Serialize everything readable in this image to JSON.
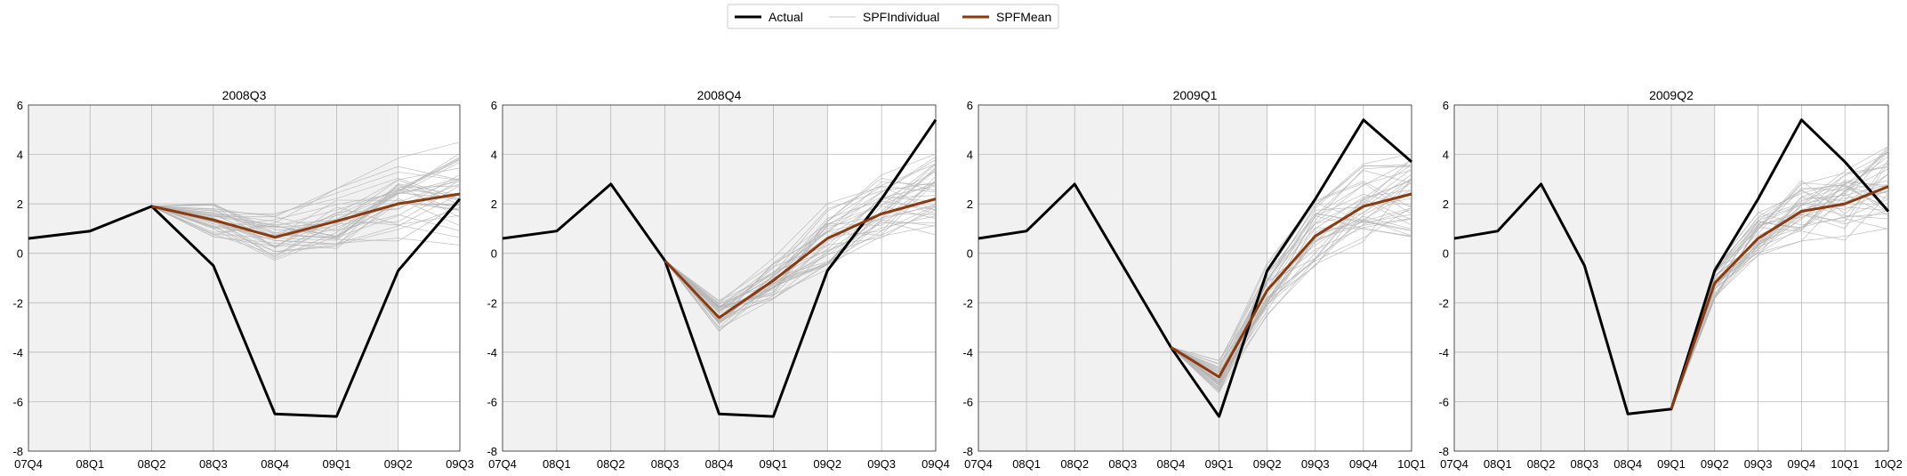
{
  "legend": {
    "placement": "top-center",
    "items": [
      {
        "label": "Actual",
        "color": "#000000"
      },
      {
        "label": "SPFIndividual",
        "color": "#c8c8c8"
      },
      {
        "label": "SPFMean",
        "color": "#8b3a0f"
      }
    ]
  },
  "colors": {
    "actual": "#000000",
    "spf_individual": "#b4b4b4",
    "spf_mean": "#8b3a0f",
    "shaded_history": "#f1f1f1",
    "grid": "#b0b0b0"
  },
  "chart_data": [
    {
      "type": "line",
      "title": "2008Q3",
      "categories": [
        "07Q4",
        "08Q1",
        "08Q2",
        "08Q3",
        "08Q4",
        "09Q1",
        "09Q2",
        "09Q3"
      ],
      "ylim": [
        -8,
        6
      ],
      "yticks": [
        -8,
        -6,
        -4,
        -2,
        0,
        2,
        4,
        6
      ],
      "grid": true,
      "shaded_history_end": "09Q2",
      "actual": [
        0.6,
        0.9,
        1.9,
        -0.5,
        -6.5,
        -6.6,
        -0.7,
        2.2
      ],
      "spf_mean": [
        null,
        null,
        1.9,
        1.35,
        0.65,
        1.3,
        2.0,
        2.4
      ],
      "spf_individual_start": 2
    },
    {
      "type": "line",
      "title": "2008Q4",
      "categories": [
        "07Q4",
        "08Q1",
        "08Q2",
        "08Q3",
        "08Q4",
        "09Q1",
        "09Q2",
        "09Q3",
        "09Q4"
      ],
      "ylim": [
        -8,
        6
      ],
      "yticks": [
        -8,
        -6,
        -4,
        -2,
        0,
        2,
        4,
        6
      ],
      "grid": true,
      "shaded_history_end": "09Q2",
      "actual": [
        0.6,
        0.9,
        2.8,
        -0.3,
        -6.5,
        -6.6,
        -0.7,
        2.2,
        5.4
      ],
      "spf_mean": [
        null,
        null,
        null,
        -0.3,
        -2.6,
        -1.1,
        0.6,
        1.6,
        2.2
      ],
      "spf_individual_start": 3
    },
    {
      "type": "line",
      "title": "2009Q1",
      "categories": [
        "07Q4",
        "08Q1",
        "08Q2",
        "08Q3",
        "08Q4",
        "09Q1",
        "09Q2",
        "09Q3",
        "09Q4",
        "10Q1"
      ],
      "ylim": [
        -8,
        6
      ],
      "yticks": [
        -8,
        -6,
        -4,
        -2,
        0,
        2,
        4,
        6
      ],
      "grid": true,
      "shaded_history_end": "09Q2",
      "actual": [
        0.6,
        0.9,
        2.8,
        -0.5,
        -3.8,
        -6.6,
        -0.7,
        2.2,
        5.4,
        3.7
      ],
      "spf_mean": [
        null,
        null,
        null,
        null,
        -3.8,
        -5.0,
        -1.5,
        0.7,
        1.9,
        2.4
      ],
      "spf_individual_start": 4
    },
    {
      "type": "line",
      "title": "2009Q2",
      "categories": [
        "07Q4",
        "08Q1",
        "08Q2",
        "08Q3",
        "08Q4",
        "09Q1",
        "09Q2",
        "09Q3",
        "09Q4",
        "10Q1",
        "10Q2"
      ],
      "ylim": [
        -8,
        6
      ],
      "yticks": [
        -8,
        -6,
        -4,
        -2,
        0,
        2,
        4,
        6
      ],
      "grid": true,
      "shaded_history_end": "09Q2",
      "actual": [
        0.6,
        0.9,
        2.8,
        -0.5,
        -6.5,
        -6.3,
        -0.7,
        2.2,
        5.4,
        3.7,
        1.7
      ],
      "spf_mean": [
        null,
        null,
        null,
        null,
        null,
        -6.3,
        -1.2,
        0.6,
        1.7,
        2.0,
        2.7
      ],
      "spf_individual_start": 5
    }
  ]
}
